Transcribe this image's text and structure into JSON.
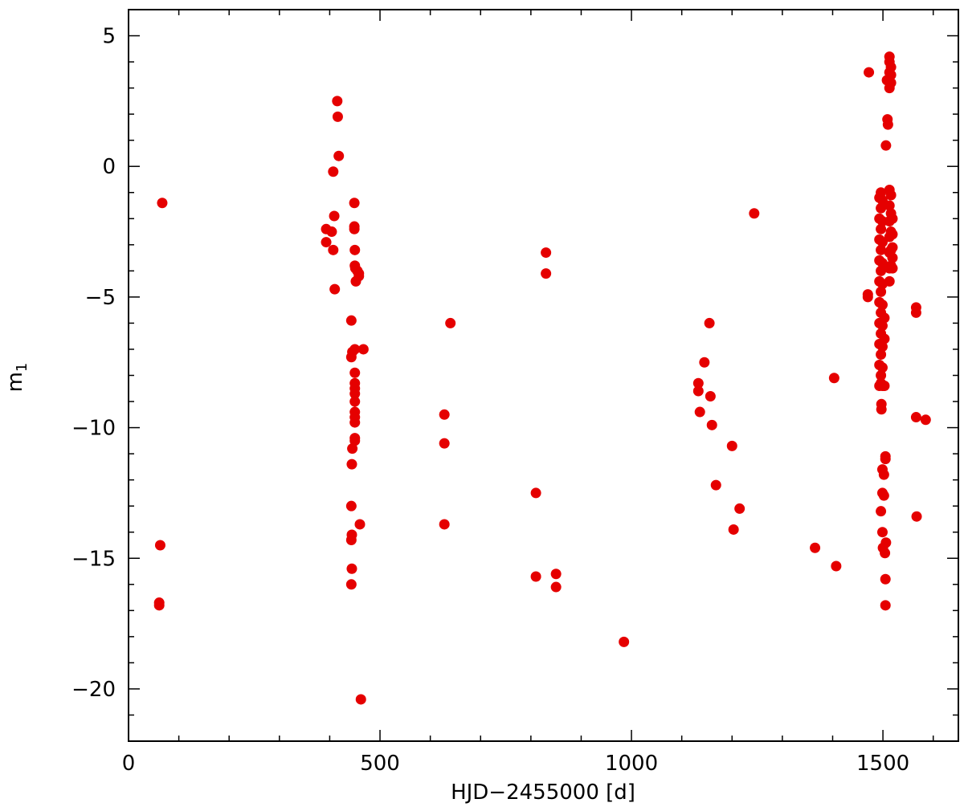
{
  "chart_data": {
    "type": "scatter",
    "xlabel": "HJD−2455000 [d]",
    "ylabel_main": "m",
    "ylabel_sub": "1",
    "xlim": [
      0,
      1650
    ],
    "ylim": [
      -22,
      6
    ],
    "x_ticks": [
      0,
      500,
      1000,
      1500
    ],
    "x_tick_labels": [
      "0",
      "500",
      "1000",
      "1500"
    ],
    "y_ticks": [
      5,
      0,
      -5,
      -10,
      -15,
      -20
    ],
    "y_tick_labels": [
      "5",
      "0",
      "−5",
      "−10",
      "−15",
      "−20"
    ],
    "x_minor_step": 100,
    "y_minor_step": 1,
    "grid": false,
    "marker_color": "#e50000",
    "points": [
      [
        61,
        -16.8
      ],
      [
        61,
        -16.7
      ],
      [
        63,
        -14.5
      ],
      [
        67,
        -1.4
      ],
      [
        393,
        -2.4
      ],
      [
        393,
        -2.9
      ],
      [
        404,
        -2.5
      ],
      [
        407,
        -0.2
      ],
      [
        407,
        -3.2
      ],
      [
        409,
        -1.9
      ],
      [
        410,
        -4.7
      ],
      [
        415,
        2.5
      ],
      [
        416,
        1.9
      ],
      [
        418,
        0.4
      ],
      [
        443,
        -5.9
      ],
      [
        443,
        -7.3
      ],
      [
        445,
        -7.1
      ],
      [
        445,
        -10.8
      ],
      [
        444,
        -11.4
      ],
      [
        443,
        -13.0
      ],
      [
        444,
        -14.1
      ],
      [
        443,
        -14.3
      ],
      [
        444,
        -15.4
      ],
      [
        443,
        -16.0
      ],
      [
        449,
        -1.4
      ],
      [
        449,
        -2.3
      ],
      [
        449,
        -2.4
      ],
      [
        450,
        -3.2
      ],
      [
        450,
        -3.8
      ],
      [
        451,
        -3.9
      ],
      [
        452,
        -4.4
      ],
      [
        455,
        -4.0
      ],
      [
        458,
        -4.1
      ],
      [
        458,
        -4.2
      ],
      [
        450,
        -7.0
      ],
      [
        450,
        -7.9
      ],
      [
        450,
        -8.3
      ],
      [
        450,
        -8.5
      ],
      [
        450,
        -8.7
      ],
      [
        450,
        -9.0
      ],
      [
        450,
        -9.4
      ],
      [
        450,
        -9.6
      ],
      [
        450,
        -9.8
      ],
      [
        450,
        -10.4
      ],
      [
        450,
        -10.5
      ],
      [
        460,
        -13.7
      ],
      [
        462,
        -20.4
      ],
      [
        467,
        -7.0
      ],
      [
        628,
        -9.5
      ],
      [
        628,
        -10.6
      ],
      [
        628,
        -13.7
      ],
      [
        640,
        -6.0
      ],
      [
        810,
        -12.5
      ],
      [
        810,
        -15.7
      ],
      [
        830,
        -3.3
      ],
      [
        830,
        -4.1
      ],
      [
        850,
        -15.6
      ],
      [
        850,
        -16.1
      ],
      [
        985,
        -18.2
      ],
      [
        1133,
        -8.3
      ],
      [
        1133,
        -8.6
      ],
      [
        1136,
        -9.4
      ],
      [
        1145,
        -7.5
      ],
      [
        1155,
        -6.0
      ],
      [
        1157,
        -8.8
      ],
      [
        1160,
        -9.9
      ],
      [
        1168,
        -12.2
      ],
      [
        1200,
        -10.7
      ],
      [
        1203,
        -13.9
      ],
      [
        1215,
        -13.1
      ],
      [
        1244,
        -1.8
      ],
      [
        1365,
        -14.6
      ],
      [
        1403,
        -8.1
      ],
      [
        1407,
        -15.3
      ],
      [
        1470,
        -4.9
      ],
      [
        1470,
        -5.0
      ],
      [
        1472,
        3.6
      ],
      [
        1493,
        -1.2
      ],
      [
        1493,
        -2.0
      ],
      [
        1493,
        -2.8
      ],
      [
        1493,
        -3.6
      ],
      [
        1493,
        -4.4
      ],
      [
        1493,
        -5.2
      ],
      [
        1493,
        -6.0
      ],
      [
        1493,
        -6.8
      ],
      [
        1493,
        -7.6
      ],
      [
        1493,
        -8.4
      ],
      [
        1496,
        -1.0
      ],
      [
        1496,
        -1.6
      ],
      [
        1496,
        -2.4
      ],
      [
        1496,
        -3.2
      ],
      [
        1496,
        -4.0
      ],
      [
        1496,
        -4.8
      ],
      [
        1496,
        -5.6
      ],
      [
        1496,
        -6.4
      ],
      [
        1496,
        -7.2
      ],
      [
        1496,
        -8.0
      ],
      [
        1496,
        -8.3
      ],
      [
        1499,
        -1.3
      ],
      [
        1499,
        -2.1
      ],
      [
        1499,
        -2.9
      ],
      [
        1499,
        -3.7
      ],
      [
        1499,
        -4.5
      ],
      [
        1499,
        -5.3
      ],
      [
        1499,
        -6.1
      ],
      [
        1499,
        -6.9
      ],
      [
        1499,
        -7.7
      ],
      [
        1499,
        -8.4
      ],
      [
        1497,
        -9.1
      ],
      [
        1497,
        -9.3
      ],
      [
        1496,
        -13.2
      ],
      [
        1499,
        -11.6
      ],
      [
        1499,
        -12.5
      ],
      [
        1499,
        -14.0
      ],
      [
        1500,
        -14.6
      ],
      [
        1502,
        -11.8
      ],
      [
        1502,
        -12.6
      ],
      [
        1504,
        -14.8
      ],
      [
        1505,
        -15.8
      ],
      [
        1505,
        -16.8
      ],
      [
        1505,
        -11.1
      ],
      [
        1505,
        -11.2
      ],
      [
        1506,
        -14.4
      ],
      [
        1503,
        -8.4
      ],
      [
        1503,
        -6.6
      ],
      [
        1503,
        -5.8
      ],
      [
        1506,
        0.8
      ],
      [
        1508,
        3.3
      ],
      [
        1509,
        1.8
      ],
      [
        1510,
        1.6
      ],
      [
        1513,
        -0.9
      ],
      [
        1513,
        -1.5
      ],
      [
        1513,
        -2.1
      ],
      [
        1513,
        -2.7
      ],
      [
        1513,
        -3.3
      ],
      [
        1513,
        -3.9
      ],
      [
        1513,
        -4.4
      ],
      [
        1513,
        3.0
      ],
      [
        1513,
        3.6
      ],
      [
        1513,
        4.0
      ],
      [
        1513,
        4.2
      ],
      [
        1516,
        -1.1
      ],
      [
        1516,
        -1.8
      ],
      [
        1516,
        -2.5
      ],
      [
        1516,
        -3.2
      ],
      [
        1516,
        -3.8
      ],
      [
        1516,
        3.2
      ],
      [
        1516,
        3.5
      ],
      [
        1516,
        3.8
      ],
      [
        1519,
        -2.0
      ],
      [
        1519,
        -2.6
      ],
      [
        1519,
        -3.1
      ],
      [
        1519,
        -3.5
      ],
      [
        1519,
        -3.9
      ],
      [
        1566,
        -5.4
      ],
      [
        1566,
        -5.6
      ],
      [
        1566,
        -9.6
      ],
      [
        1567,
        -13.4
      ],
      [
        1585,
        -9.7
      ]
    ]
  }
}
